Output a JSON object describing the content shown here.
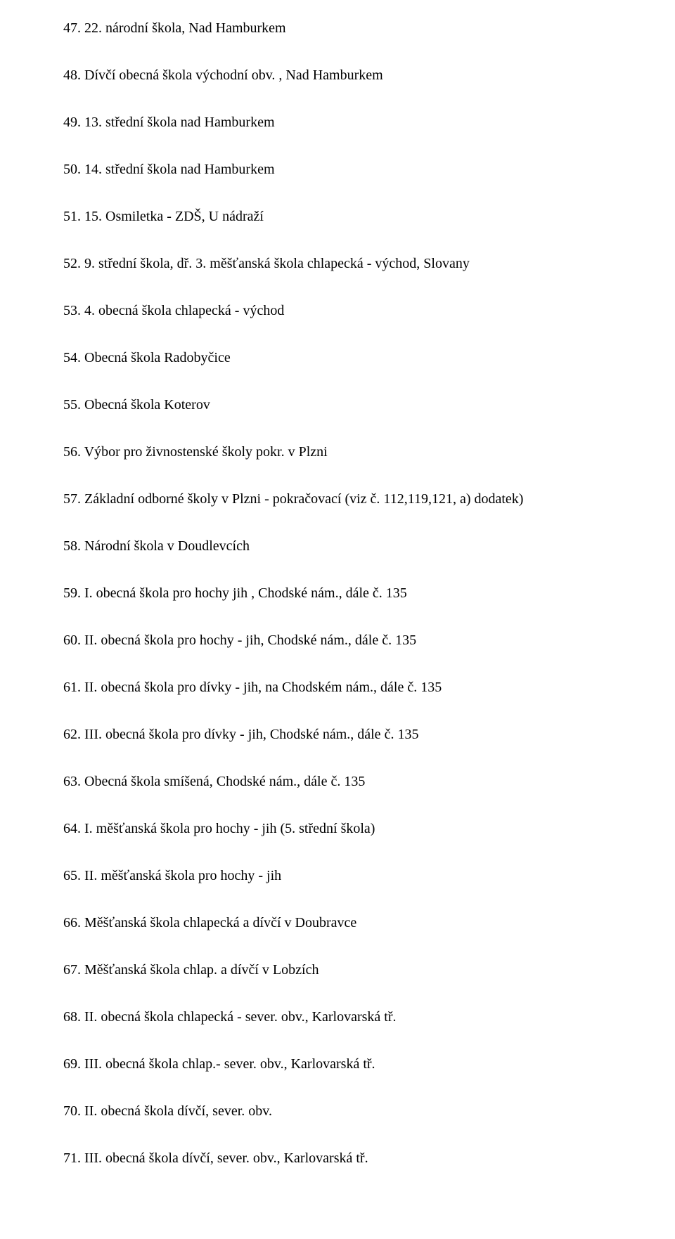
{
  "list": {
    "items": [
      "47. 22. národní škola, Nad Hamburkem",
      "48. Dívčí obecná škola východní obv. , Nad Hamburkem",
      "49. 13. střední škola nad Hamburkem",
      "50. 14. střední škola nad Hamburkem",
      "51. 15. Osmiletka - ZDŠ, U nádraží",
      "52. 9. střední škola, dř. 3. měšťanská škola chlapecká - východ, Slovany",
      "53. 4. obecná škola chlapecká - východ",
      "54. Obecná škola Radobyčice",
      "55. Obecná škola Koterov",
      "56. Výbor pro živnostenské školy pokr. v Plzni",
      "57. Základní odborné školy v Plzni - pokračovací (viz č. 112,119,121, a) dodatek)",
      "58. Národní škola v Doudlevcích",
      "59. I. obecná škola pro hochy jih , Chodské nám., dále č. 135",
      "60. II. obecná škola pro hochy - jih, Chodské nám., dále č. 135",
      "61. II. obecná škola pro dívky - jih, na Chodském nám., dále č. 135",
      "62. III. obecná škola pro dívky - jih, Chodské nám., dále č. 135",
      "63. Obecná škola smíšená, Chodské nám., dále č. 135",
      "64. I. měšťanská škola pro hochy - jih (5. střední škola)",
      "65. II. měšťanská škola pro hochy - jih",
      "66. Měšťanská škola chlapecká a dívčí v Doubravce",
      "67. Měšťanská škola chlap. a dívčí v Lobzích",
      "68. II. obecná škola chlapecká - sever. obv., Karlovarská tř.",
      "69. III. obecná škola chlap.- sever. obv., Karlovarská tř.",
      "70. II. obecná škola dívčí, sever. obv.",
      "71. III. obecná škola dívčí, sever. obv., Karlovarská tř."
    ]
  }
}
